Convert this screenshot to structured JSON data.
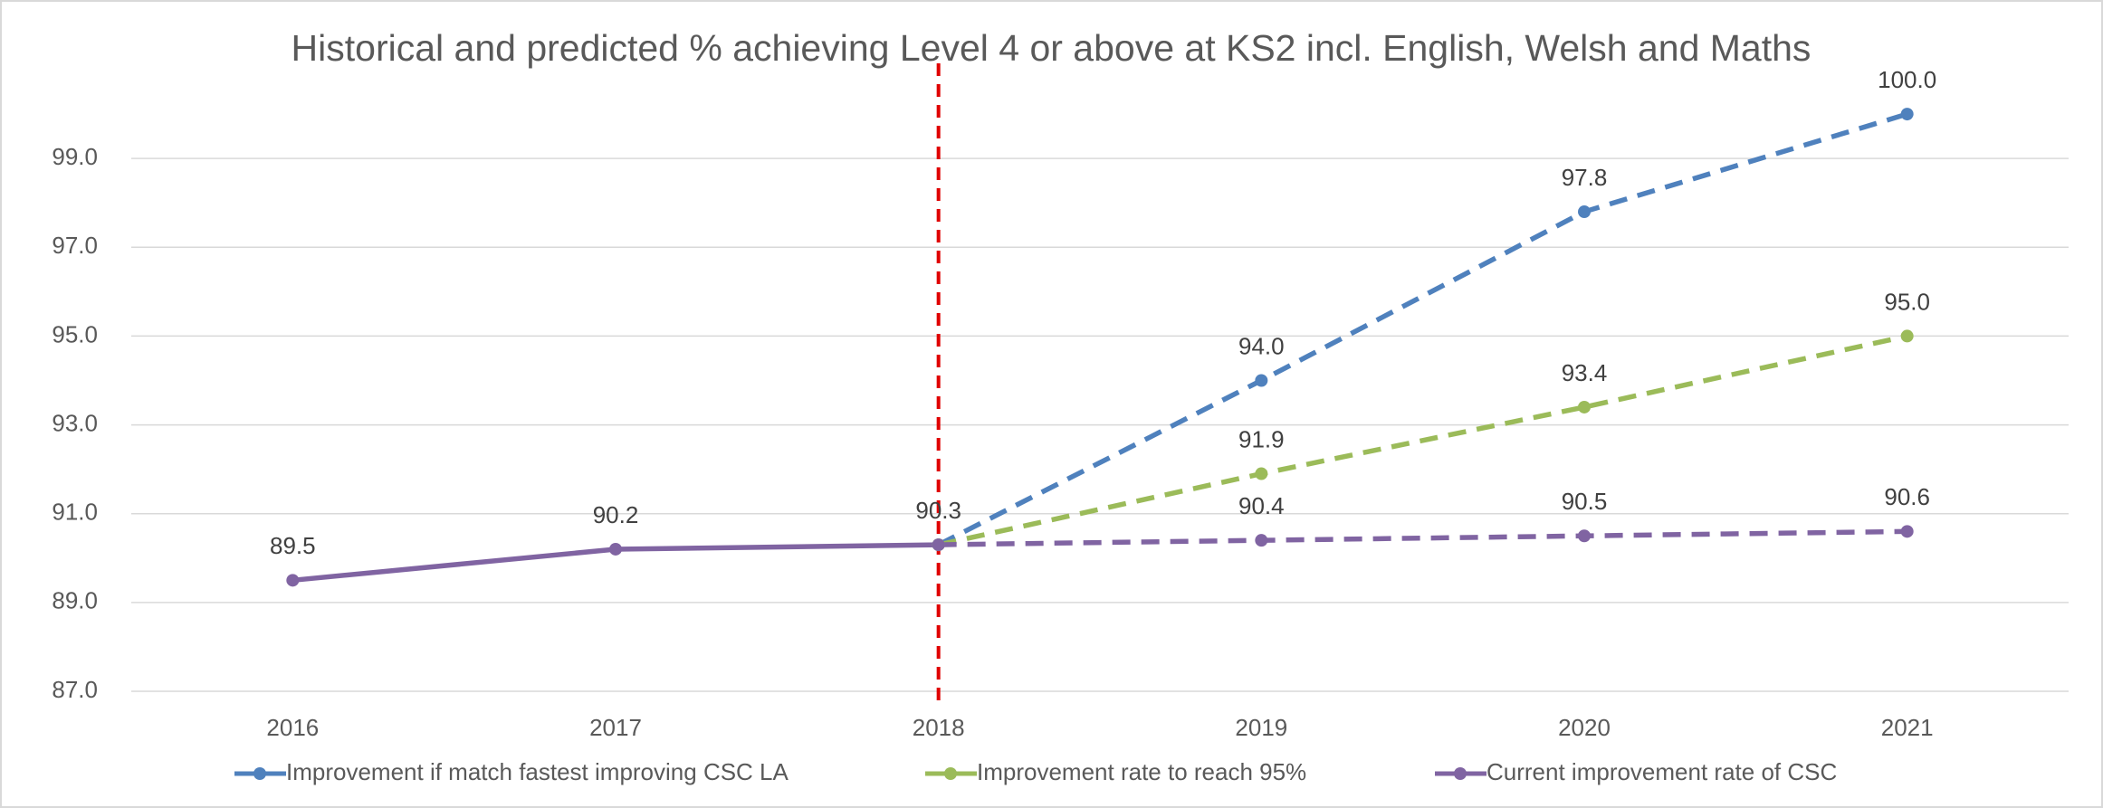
{
  "chart_data": {
    "type": "line",
    "title": "Historical and predicted % achieving Level 4 or above at KS2 incl. English, Welsh and Maths",
    "categories": [
      "2016",
      "2017",
      "2018",
      "2019",
      "2020",
      "2021"
    ],
    "series": [
      {
        "name": "Improvement if match fastest improving CSC LA",
        "color": "#4f81bd",
        "values": [
          null,
          null,
          90.3,
          94.0,
          97.8,
          100.0
        ],
        "value_labels": [
          null,
          null,
          null,
          "94.0",
          "97.8",
          "100.0"
        ]
      },
      {
        "name": "Improvement rate to reach 95%",
        "color": "#9bbb59",
        "values": [
          null,
          null,
          90.3,
          91.9,
          93.4,
          95.0
        ],
        "value_labels": [
          null,
          null,
          null,
          "91.9",
          "93.4",
          "95.0"
        ]
      },
      {
        "name": "Current improvement rate of CSC",
        "color": "#8064a2",
        "values": [
          89.5,
          90.2,
          90.3,
          90.4,
          90.5,
          90.6
        ],
        "value_labels": [
          "89.5",
          "90.2",
          "90.3",
          "90.4",
          "90.5",
          "90.6"
        ]
      }
    ],
    "ylim": [
      87,
      101
    ],
    "yticks": [
      {
        "value": 87,
        "label": "87.0"
      },
      {
        "value": 89,
        "label": "89.0"
      },
      {
        "value": 91,
        "label": "91.0"
      },
      {
        "value": 93,
        "label": "93.0"
      },
      {
        "value": 95,
        "label": "95.0"
      },
      {
        "value": 97,
        "label": "97.0"
      },
      {
        "value": 99,
        "label": "99.0"
      }
    ],
    "grid": true,
    "legend": "bottom",
    "marker_line": {
      "at": "2018",
      "color": "#e00000"
    }
  }
}
